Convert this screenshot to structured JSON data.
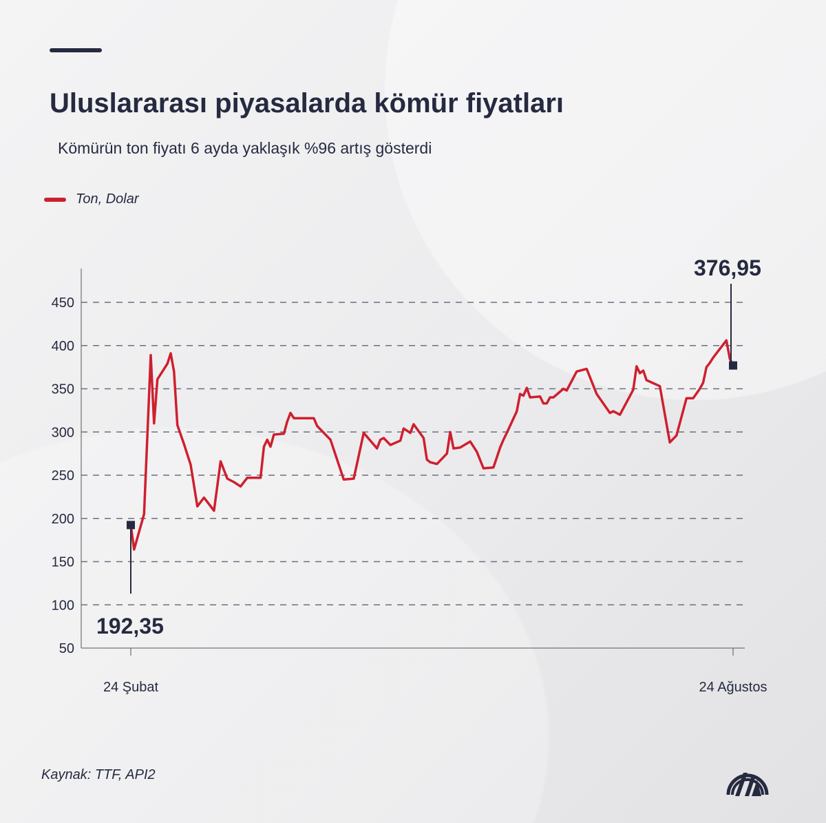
{
  "header": {
    "title": "Uluslararası piyasalarda kömür fiyatları",
    "subtitle": "Kömürün ton fiyatı 6 ayda yaklaşık %96 artış gösterdi"
  },
  "footer": {
    "source": "Kaynak: TTF, API2",
    "logo": "AA"
  },
  "colors": {
    "line": "#cf1f2e",
    "text": "#252a40",
    "grid": "#6b6f7e"
  },
  "chart_data": {
    "type": "line",
    "title": "Uluslararası piyasalarda kömür fiyatları",
    "legend": {
      "label": "Ton, Dolar",
      "placement": "top-left"
    },
    "ylim": [
      50,
      480
    ],
    "yticks": [
      "50",
      "100",
      "150",
      "200",
      "250",
      "300",
      "350",
      "400",
      "450"
    ],
    "xticks": [
      "24 Şubat",
      "24 Ağustos"
    ],
    "grid": "horizontal dashed",
    "annotations": [
      {
        "label": "192,35",
        "x": "02-24",
        "value": 192.35
      },
      {
        "label": "376,95",
        "x": "08-24",
        "value": 376.95
      }
    ],
    "series": [
      {
        "name": "Ton, Dolar",
        "x": [
          "02-24",
          "02-25",
          "02-28",
          "03-02",
          "03-03",
          "03-04",
          "03-07",
          "03-08",
          "03-09",
          "03-10",
          "03-12",
          "03-14",
          "03-16",
          "03-18",
          "03-21",
          "03-23",
          "03-25",
          "03-27",
          "03-29",
          "03-31",
          "04-04",
          "04-05",
          "04-06",
          "04-07",
          "04-08",
          "04-11",
          "04-12",
          "04-13",
          "04-14",
          "04-20",
          "04-21",
          "04-25",
          "04-29",
          "05-02",
          "05-05",
          "05-09",
          "05-10",
          "05-11",
          "05-13",
          "05-16",
          "05-17",
          "05-19",
          "05-20",
          "05-23",
          "05-24",
          "05-25",
          "05-27",
          "05-30",
          "05-31",
          "06-01",
          "06-03",
          "06-06",
          "06-08",
          "06-10",
          "06-13",
          "06-15",
          "06-16",
          "06-17",
          "06-20",
          "06-21",
          "06-22",
          "06-23",
          "06-24",
          "06-27",
          "06-28",
          "06-29",
          "06-30",
          "07-01",
          "07-04",
          "07-05",
          "07-08",
          "07-11",
          "07-14",
          "07-18",
          "07-19",
          "07-21",
          "07-25",
          "07-26",
          "07-27",
          "07-28",
          "07-29",
          "08-02",
          "08-05",
          "08-07",
          "08-10",
          "08-12",
          "08-14",
          "08-15",
          "08-16",
          "08-17",
          "08-18",
          "08-22",
          "08-23",
          "08-24"
        ],
        "values": [
          192.35,
          164,
          205,
          389,
          310,
          361,
          379,
          391,
          370,
          308,
          286,
          262,
          214,
          224,
          209,
          266,
          246,
          242,
          237,
          247,
          247,
          283,
          291,
          283,
          297,
          298,
          312,
          322,
          316,
          316,
          307,
          291,
          245,
          246,
          299,
          281,
          291,
          293,
          285,
          290,
          304,
          299,
          309,
          293,
          268,
          265,
          263,
          275,
          300,
          281,
          282,
          289,
          277,
          258,
          259,
          282,
          291,
          299,
          324,
          344,
          342,
          351,
          340,
          341,
          333,
          333,
          340,
          340,
          350,
          348,
          370,
          373,
          344,
          322,
          324,
          320,
          349,
          376,
          368,
          371,
          360,
          353,
          288,
          296,
          339,
          339,
          350,
          357,
          375,
          380,
          386,
          406,
          385,
          376.95
        ]
      }
    ]
  }
}
